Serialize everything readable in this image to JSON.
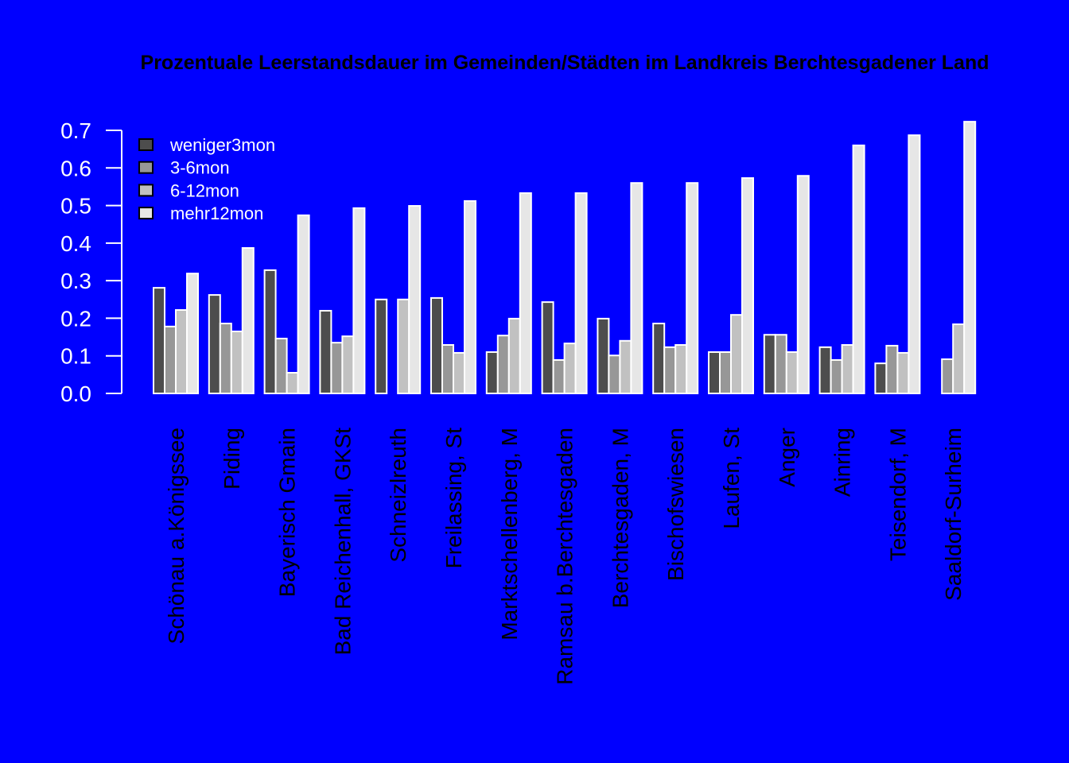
{
  "chart_data": {
    "type": "bar",
    "title": "Prozentuale Leerstandsdauer im Gemeinden/Städten im Landkreis Berchtesgadener Land",
    "xlabel": "",
    "ylabel": "",
    "ylim": [
      0,
      0.7
    ],
    "yticks": [
      "0.0",
      "0.1",
      "0.2",
      "0.3",
      "0.4",
      "0.5",
      "0.6",
      "0.7"
    ],
    "legend_position": "top-left",
    "colors": {
      "background": "#0000ff",
      "weniger3mon": "#4d4d4d",
      "3-6mon": "#979797",
      "6-12mon": "#c1c1c1",
      "mehr12mon": "#e6e6e6",
      "border": "#ffffff"
    },
    "categories": [
      "Schönau a.Königssee",
      "Piding",
      "Bayerisch Gmain",
      "Bad Reichenhall, GKSt",
      "Schneizlreuth",
      "Freilassing, St",
      "Marktschellenberg, M",
      "Ramsau b.Berchtesgaden",
      "Berchtesgaden, M",
      "Bischofswiesen",
      "Laufen, St",
      "Anger",
      "Ainring",
      "Teisendorf, M",
      "Saaldorf-Surheim"
    ],
    "series": [
      {
        "name": "weniger3mon",
        "values": [
          0.281,
          0.262,
          0.328,
          0.22,
          0.25,
          0.254,
          0.11,
          0.243,
          0.199,
          0.186,
          0.11,
          0.156,
          0.123,
          0.08,
          0.0
        ]
      },
      {
        "name": "3-6mon",
        "values": [
          0.178,
          0.186,
          0.146,
          0.135,
          0.0,
          0.129,
          0.154,
          0.089,
          0.101,
          0.123,
          0.11,
          0.156,
          0.089,
          0.127,
          0.091
        ]
      },
      {
        "name": "6-12mon",
        "values": [
          0.222,
          0.165,
          0.055,
          0.152,
          0.25,
          0.108,
          0.199,
          0.133,
          0.14,
          0.129,
          0.209,
          0.11,
          0.129,
          0.108,
          0.184
        ]
      },
      {
        "name": "mehr12mon",
        "values": [
          0.319,
          0.387,
          0.474,
          0.493,
          0.499,
          0.512,
          0.533,
          0.533,
          0.56,
          0.56,
          0.573,
          0.579,
          0.66,
          0.687,
          0.723
        ]
      }
    ]
  }
}
